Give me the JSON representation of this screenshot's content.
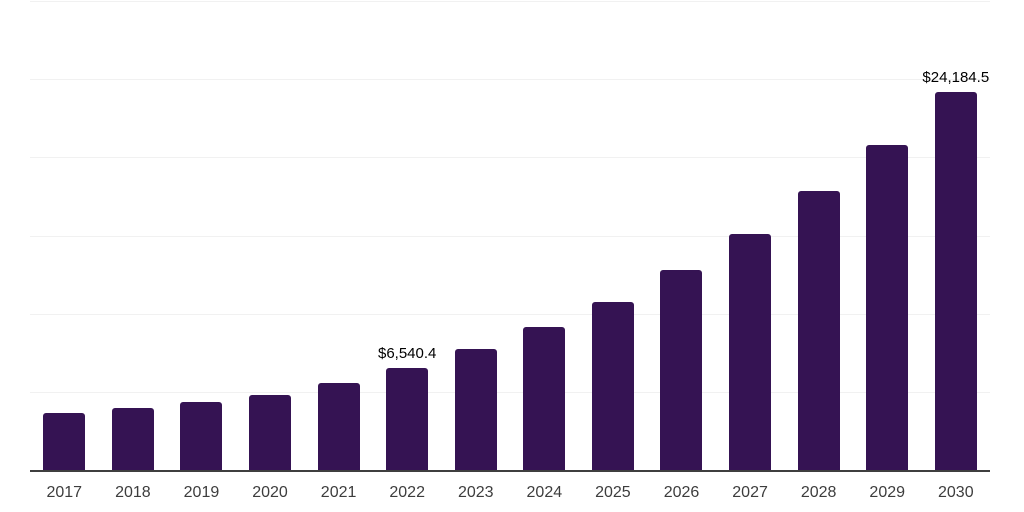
{
  "chart_data": {
    "type": "bar",
    "title": "",
    "xlabel": "",
    "ylabel": "",
    "categories": [
      "2017",
      "2018",
      "2019",
      "2020",
      "2021",
      "2022",
      "2023",
      "2024",
      "2025",
      "2026",
      "2027",
      "2028",
      "2029",
      "2030"
    ],
    "values": [
      3650,
      3970,
      4350,
      4800,
      5570,
      6540.4,
      7740,
      9150,
      10750,
      12800,
      15100,
      17850,
      20790,
      24184.5
    ],
    "data_labels": [
      "",
      "",
      "",
      "",
      "",
      "$6,540.4",
      "",
      "",
      "",
      "",
      "",
      "",
      "",
      "$24,184.5"
    ],
    "ylim": [
      0,
      30000
    ],
    "gridline_interval": 5000,
    "grid": true,
    "legend": false,
    "colors": {
      "bar": "#351353",
      "gridline": "#f1f1f1",
      "axis_line": "#3f3f3f",
      "tick_label": "#3d3d3d",
      "value_label": "#000000",
      "background": "#ffffff"
    }
  }
}
